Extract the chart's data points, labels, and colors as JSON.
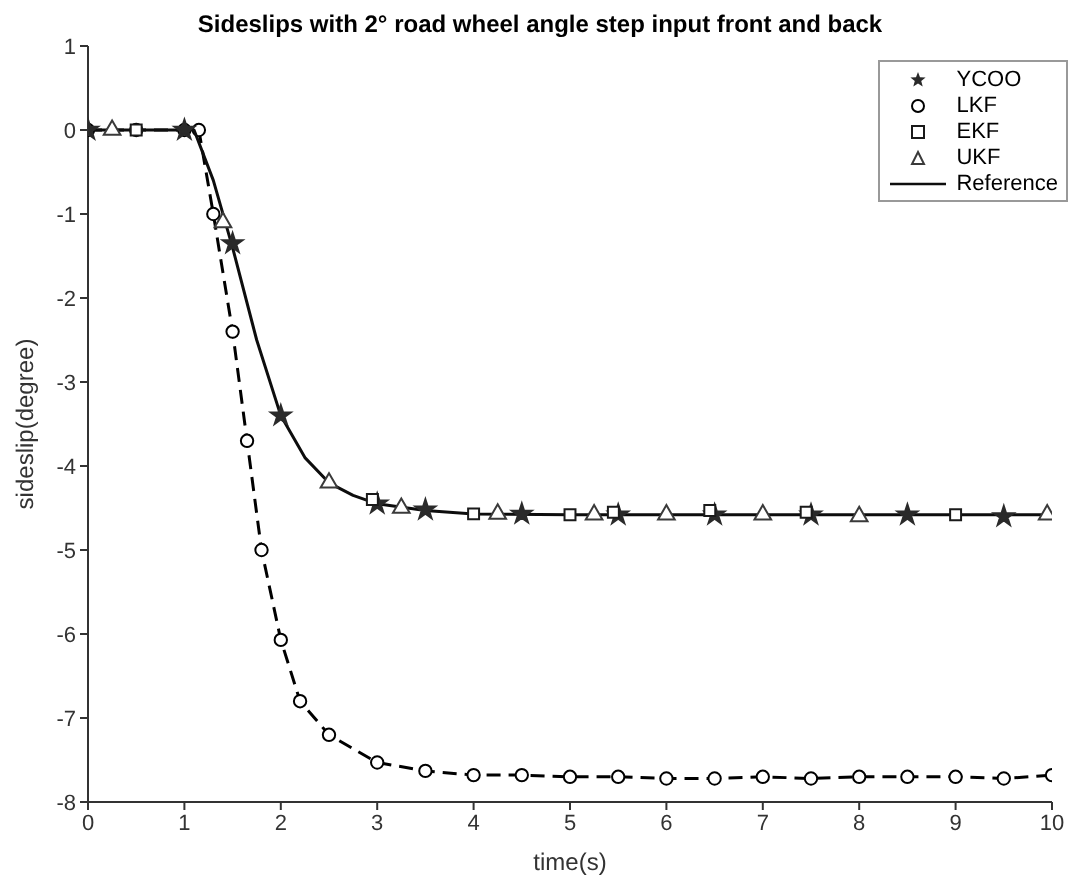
{
  "chart_data": {
    "type": "scatter",
    "title": "Sideslips with 2° road wheel angle step input front and back",
    "xlabel": "time(s)",
    "ylabel": "sideslip(degree)",
    "xlim": [
      0,
      10
    ],
    "ylim": [
      -8,
      1
    ],
    "xticks": [
      0,
      1,
      2,
      3,
      4,
      5,
      6,
      7,
      8,
      9,
      10
    ],
    "yticks": [
      -8,
      -7,
      -6,
      -5,
      -4,
      -3,
      -2,
      -1,
      0,
      1
    ],
    "grid": false,
    "legend": "top right",
    "series": [
      {
        "name": "YCOO",
        "marker": "star",
        "color": "#2a2a2a",
        "x": [
          0,
          1,
          1.5,
          2,
          3,
          3.5,
          4.5,
          5.5,
          6.5,
          7.5,
          8.5,
          9.5
        ],
        "values": [
          0,
          0,
          -1.35,
          -3.4,
          -4.45,
          -4.52,
          -4.57,
          -4.58,
          -4.58,
          -4.58,
          -4.58,
          -4.6
        ]
      },
      {
        "name": "LKF",
        "type": "line",
        "marker": "circle",
        "line_style": "dashed",
        "color": "#000000",
        "x": [
          0,
          0.5,
          1,
          1.15,
          1.3,
          1.5,
          1.65,
          1.8,
          2,
          2.2,
          2.5,
          3,
          3.5,
          4,
          4.5,
          5,
          5.5,
          6,
          6.5,
          7,
          7.5,
          8,
          8.5,
          9,
          9.5,
          10
        ],
        "values": [
          0,
          0,
          0,
          0,
          -1,
          -2.4,
          -3.7,
          -5,
          -6.07,
          -6.8,
          -7.2,
          -7.53,
          -7.63,
          -7.68,
          -7.68,
          -7.7,
          -7.7,
          -7.72,
          -7.72,
          -7.7,
          -7.72,
          -7.7,
          -7.7,
          -7.7,
          -7.72,
          -7.68
        ]
      },
      {
        "name": "EKF",
        "marker": "square",
        "color": "#1a1a1a",
        "x": [
          0.5,
          2.95,
          4,
          5,
          5.45,
          6.45,
          7.45,
          9
        ],
        "values": [
          0,
          -4.4,
          -4.57,
          -4.58,
          -4.55,
          -4.53,
          -4.55,
          -4.58
        ]
      },
      {
        "name": "UKF",
        "marker": "triangle",
        "color": "#3a3a3a",
        "x": [
          0.25,
          1.4,
          2.5,
          3.25,
          4.25,
          5.25,
          6,
          7,
          8,
          9.95
        ],
        "values": [
          0,
          -1.1,
          -4.2,
          -4.5,
          -4.57,
          -4.58,
          -4.58,
          -4.58,
          -4.6,
          -4.58
        ]
      },
      {
        "name": "Reference",
        "type": "line",
        "marker": "none",
        "line_style": "solid",
        "color": "#0d0d0d",
        "x": [
          0,
          1,
          1.1,
          1.3,
          1.5,
          1.75,
          2,
          2.25,
          2.5,
          2.75,
          3,
          3.5,
          4,
          5,
          6,
          7,
          8,
          9,
          10
        ],
        "values": [
          0,
          0,
          0,
          -0.6,
          -1.4,
          -2.5,
          -3.4,
          -3.9,
          -4.2,
          -4.35,
          -4.45,
          -4.53,
          -4.57,
          -4.58,
          -4.58,
          -4.58,
          -4.58,
          -4.58,
          -4.58
        ]
      }
    ]
  }
}
